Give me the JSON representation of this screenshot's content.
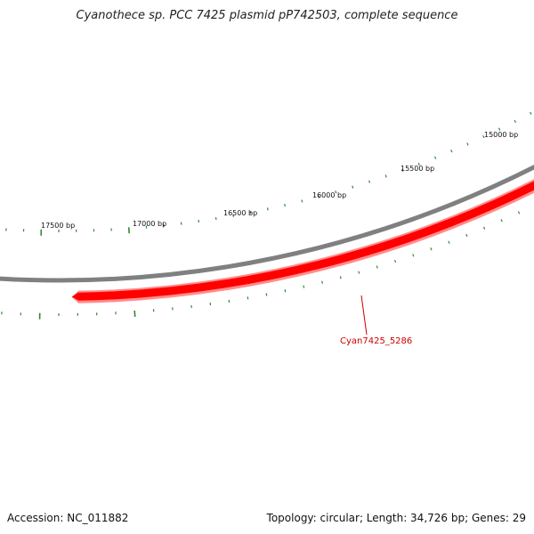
{
  "title": "Cyanothece sp. PCC 7425 plasmid pP742503, complete sequence",
  "colors": {
    "backbone": "#808080",
    "gene": "#ff0000",
    "gene_label": "#cc0000",
    "ticks": "#2e8b2e"
  },
  "scale_labels": [
    "15000 bp",
    "15500 bp",
    "16000 bp",
    "16500 bp",
    "17000 bp",
    "17500 bp"
  ],
  "gene": {
    "label": "Cyan7425_5286",
    "strand": "reverse"
  },
  "footer": {
    "accession": "Accession: NC_011882",
    "summary": "Topology: circular; Length: 34,726 bp; Genes: 29"
  }
}
